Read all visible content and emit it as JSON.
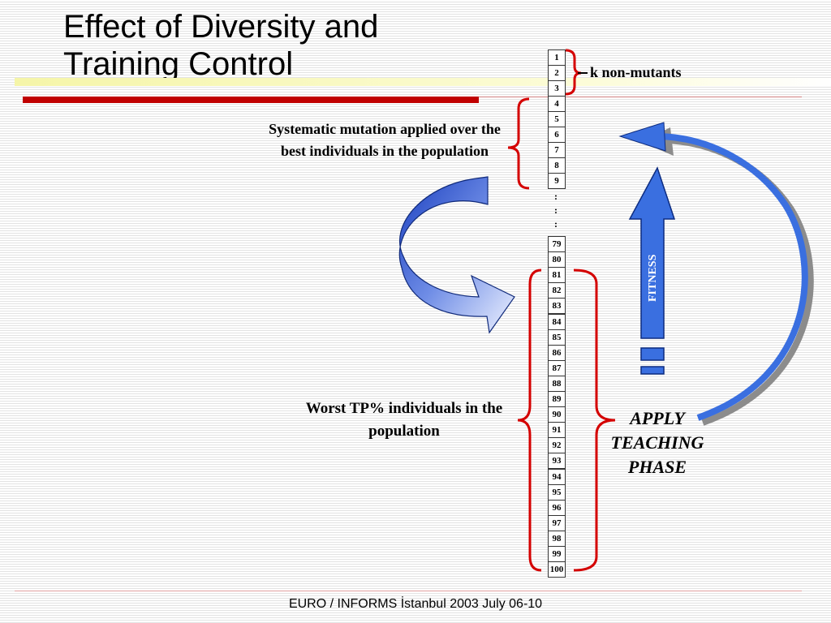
{
  "slide": {
    "title_lines": [
      "Effect of Diversity and",
      "Training Control"
    ],
    "footer": "EURO / INFORMS  İstanbul 2003  July 06-10"
  },
  "diagram": {
    "population_top": [
      "1",
      "2",
      "3",
      "4",
      "5",
      "6",
      "7",
      "8",
      "9"
    ],
    "ellipsis": [
      ":",
      ":",
      ":"
    ],
    "population_bottom": [
      "79",
      "80",
      "81",
      "82",
      "83",
      "84",
      "85",
      "86",
      "87",
      "88",
      "89",
      "90",
      "91",
      "92",
      "93",
      "94",
      "95",
      "96",
      "97",
      "98",
      "99",
      "100"
    ],
    "labels": {
      "k_non_mutants": "k non-mutants",
      "systematic_mutation": "Systematic mutation applied over the best individuals in the population",
      "worst_tp": "Worst TP% individuals in the population",
      "apply_teaching": "APPLY TEACHING PHASE",
      "fitness": "FITNESS"
    },
    "colors": {
      "brace": "#d40000",
      "arrow_blue": "#3a6fe0",
      "title_rule": "#c00000"
    }
  }
}
